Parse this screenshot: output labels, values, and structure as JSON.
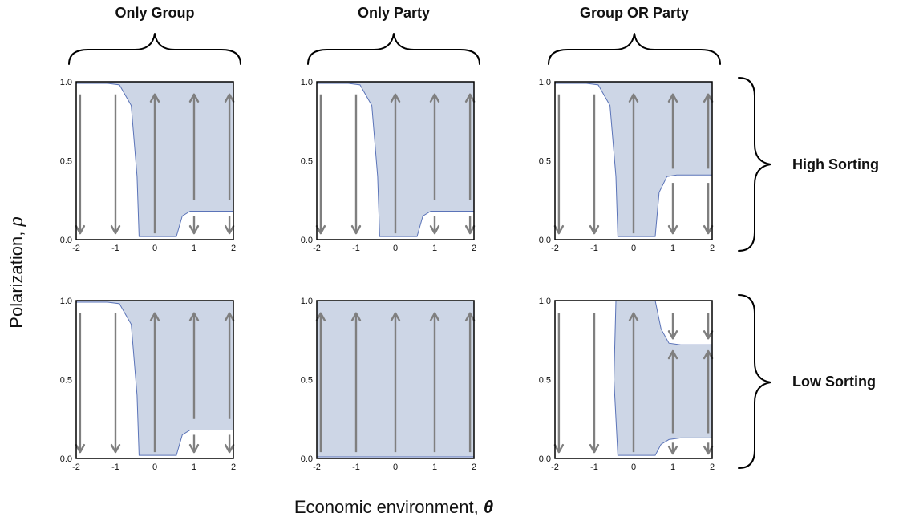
{
  "labels": {
    "columns": [
      "Only Group",
      "Only Party",
      "Group OR Party"
    ],
    "rows": [
      "High Sorting",
      "Low Sorting"
    ],
    "xlabel": "Economic environment, ",
    "xsymbol": "θ",
    "ylabel": "Polarization, ",
    "ysymbol": "p"
  },
  "colors": {
    "region_fill": "#cdd6e6",
    "region_edge": "#5a73b8",
    "arrow": "#7f7f7f",
    "frame": "#000000"
  },
  "chart_data": [
    {
      "type": "area",
      "column": "Only Group",
      "row": "High Sorting",
      "xlim": [
        -2,
        2
      ],
      "ylim": [
        0,
        1
      ],
      "x_ticks": [
        "-2",
        "-1",
        "0",
        "1",
        "2"
      ],
      "y_ticks": [
        "0.0",
        "0.5",
        "1.0"
      ],
      "region_polygon": [
        [
          -2,
          0.99
        ],
        [
          -1.2,
          0.99
        ],
        [
          -0.9,
          0.98
        ],
        [
          -0.6,
          0.85
        ],
        [
          -0.45,
          0.4
        ],
        [
          -0.4,
          0.02
        ],
        [
          0.55,
          0.02
        ],
        [
          0.7,
          0.15
        ],
        [
          0.9,
          0.18
        ],
        [
          2,
          0.18
        ],
        [
          2,
          1.0
        ],
        [
          -2,
          1.0
        ]
      ],
      "arrows": [
        {
          "x": -1.9,
          "from": 0.92,
          "to": 0.04
        },
        {
          "x": -1.0,
          "from": 0.92,
          "to": 0.04
        },
        {
          "x": 0.0,
          "from": 0.04,
          "to": 0.92
        },
        {
          "x": 1.0,
          "from": 0.25,
          "to": 0.92
        },
        {
          "x": 1.0,
          "from": 0.15,
          "to": 0.04
        },
        {
          "x": 1.9,
          "from": 0.25,
          "to": 0.92
        },
        {
          "x": 1.9,
          "from": 0.15,
          "to": 0.04
        }
      ]
    },
    {
      "type": "area",
      "column": "Only Party",
      "row": "High Sorting",
      "xlim": [
        -2,
        2
      ],
      "ylim": [
        0,
        1
      ],
      "x_ticks": [
        "-2",
        "-1",
        "0",
        "1",
        "2"
      ],
      "y_ticks": [
        "0.0",
        "0.5",
        "1.0"
      ],
      "region_polygon": [
        [
          -2,
          0.99
        ],
        [
          -1.2,
          0.99
        ],
        [
          -0.9,
          0.98
        ],
        [
          -0.6,
          0.85
        ],
        [
          -0.45,
          0.4
        ],
        [
          -0.4,
          0.02
        ],
        [
          0.55,
          0.02
        ],
        [
          0.7,
          0.15
        ],
        [
          0.9,
          0.18
        ],
        [
          2,
          0.18
        ],
        [
          2,
          1.0
        ],
        [
          -2,
          1.0
        ]
      ],
      "arrows": [
        {
          "x": -1.9,
          "from": 0.92,
          "to": 0.04
        },
        {
          "x": -1.0,
          "from": 0.92,
          "to": 0.04
        },
        {
          "x": 0.0,
          "from": 0.04,
          "to": 0.92
        },
        {
          "x": 1.0,
          "from": 0.25,
          "to": 0.92
        },
        {
          "x": 1.0,
          "from": 0.15,
          "to": 0.04
        },
        {
          "x": 1.9,
          "from": 0.25,
          "to": 0.92
        },
        {
          "x": 1.9,
          "from": 0.15,
          "to": 0.04
        }
      ]
    },
    {
      "type": "area",
      "column": "Group OR Party",
      "row": "High Sorting",
      "xlim": [
        -2,
        2
      ],
      "ylim": [
        0,
        1
      ],
      "x_ticks": [
        "-2",
        "-1",
        "0",
        "1",
        "2"
      ],
      "y_ticks": [
        "0.0",
        "0.5",
        "1.0"
      ],
      "region_polygon": [
        [
          -2,
          0.99
        ],
        [
          -1.2,
          0.99
        ],
        [
          -0.9,
          0.98
        ],
        [
          -0.6,
          0.85
        ],
        [
          -0.45,
          0.4
        ],
        [
          -0.4,
          0.02
        ],
        [
          0.55,
          0.02
        ],
        [
          0.65,
          0.3
        ],
        [
          0.85,
          0.4
        ],
        [
          1.1,
          0.41
        ],
        [
          2,
          0.41
        ],
        [
          2,
          1.0
        ],
        [
          -2,
          1.0
        ]
      ],
      "arrows": [
        {
          "x": -1.9,
          "from": 0.92,
          "to": 0.04
        },
        {
          "x": -1.0,
          "from": 0.92,
          "to": 0.04
        },
        {
          "x": 0.0,
          "from": 0.04,
          "to": 0.92
        },
        {
          "x": 1.0,
          "from": 0.45,
          "to": 0.92
        },
        {
          "x": 1.0,
          "from": 0.36,
          "to": 0.04
        },
        {
          "x": 1.9,
          "from": 0.45,
          "to": 0.92
        },
        {
          "x": 1.9,
          "from": 0.36,
          "to": 0.04
        }
      ]
    },
    {
      "type": "area",
      "column": "Only Group",
      "row": "Low Sorting",
      "xlim": [
        -2,
        2
      ],
      "ylim": [
        0,
        1
      ],
      "x_ticks": [
        "-2",
        "-1",
        "0",
        "1",
        "2"
      ],
      "y_ticks": [
        "0.0",
        "0.5",
        "1.0"
      ],
      "region_polygon": [
        [
          -2,
          0.99
        ],
        [
          -1.2,
          0.99
        ],
        [
          -0.9,
          0.98
        ],
        [
          -0.6,
          0.85
        ],
        [
          -0.45,
          0.4
        ],
        [
          -0.4,
          0.02
        ],
        [
          0.55,
          0.02
        ],
        [
          0.7,
          0.15
        ],
        [
          0.9,
          0.18
        ],
        [
          2,
          0.18
        ],
        [
          2,
          1.0
        ],
        [
          -2,
          1.0
        ]
      ],
      "arrows": [
        {
          "x": -1.9,
          "from": 0.92,
          "to": 0.04
        },
        {
          "x": -1.0,
          "from": 0.92,
          "to": 0.04
        },
        {
          "x": 0.0,
          "from": 0.04,
          "to": 0.92
        },
        {
          "x": 1.0,
          "from": 0.25,
          "to": 0.92
        },
        {
          "x": 1.0,
          "from": 0.15,
          "to": 0.04
        },
        {
          "x": 1.9,
          "from": 0.25,
          "to": 0.92
        },
        {
          "x": 1.9,
          "from": 0.15,
          "to": 0.04
        }
      ]
    },
    {
      "type": "area",
      "column": "Only Party",
      "row": "Low Sorting",
      "xlim": [
        -2,
        2
      ],
      "ylim": [
        0,
        1
      ],
      "x_ticks": [
        "-2",
        "-1",
        "0",
        "1",
        "2"
      ],
      "y_ticks": [
        "0.0",
        "0.5",
        "1.0"
      ],
      "region_polygon": [
        [
          -2,
          0.01
        ],
        [
          2,
          0.01
        ],
        [
          2,
          1.0
        ],
        [
          -2,
          1.0
        ]
      ],
      "arrows": [
        {
          "x": -1.9,
          "from": 0.04,
          "to": 0.92
        },
        {
          "x": -1.0,
          "from": 0.04,
          "to": 0.92
        },
        {
          "x": 0.0,
          "from": 0.04,
          "to": 0.92
        },
        {
          "x": 1.0,
          "from": 0.04,
          "to": 0.92
        },
        {
          "x": 1.9,
          "from": 0.04,
          "to": 0.92
        }
      ]
    },
    {
      "type": "area",
      "column": "Group OR Party",
      "row": "Low Sorting",
      "xlim": [
        -2,
        2
      ],
      "ylim": [
        0,
        1
      ],
      "x_ticks": [
        "-2",
        "-1",
        "0",
        "1",
        "2"
      ],
      "y_ticks": [
        "0.0",
        "0.5",
        "1.0"
      ],
      "region_polygon": [
        [
          -0.45,
          1.0
        ],
        [
          0.55,
          1.0
        ],
        [
          0.7,
          0.82
        ],
        [
          0.9,
          0.73
        ],
        [
          1.2,
          0.72
        ],
        [
          2,
          0.72
        ],
        [
          2,
          0.13
        ],
        [
          1.2,
          0.13
        ],
        [
          0.9,
          0.12
        ],
        [
          0.7,
          0.09
        ],
        [
          0.55,
          0.02
        ],
        [
          -0.4,
          0.02
        ],
        [
          -0.5,
          0.5
        ]
      ],
      "arrows": [
        {
          "x": -1.9,
          "from": 0.92,
          "to": 0.04
        },
        {
          "x": -1.0,
          "from": 0.92,
          "to": 0.04
        },
        {
          "x": 0.0,
          "from": 0.04,
          "to": 0.92
        },
        {
          "x": 1.0,
          "from": 0.92,
          "to": 0.76
        },
        {
          "x": 1.0,
          "from": 0.16,
          "to": 0.68
        },
        {
          "x": 1.0,
          "from": 0.1,
          "to": 0.03
        },
        {
          "x": 1.9,
          "from": 0.92,
          "to": 0.76
        },
        {
          "x": 1.9,
          "from": 0.16,
          "to": 0.68
        },
        {
          "x": 1.9,
          "from": 0.1,
          "to": 0.03
        }
      ]
    }
  ]
}
